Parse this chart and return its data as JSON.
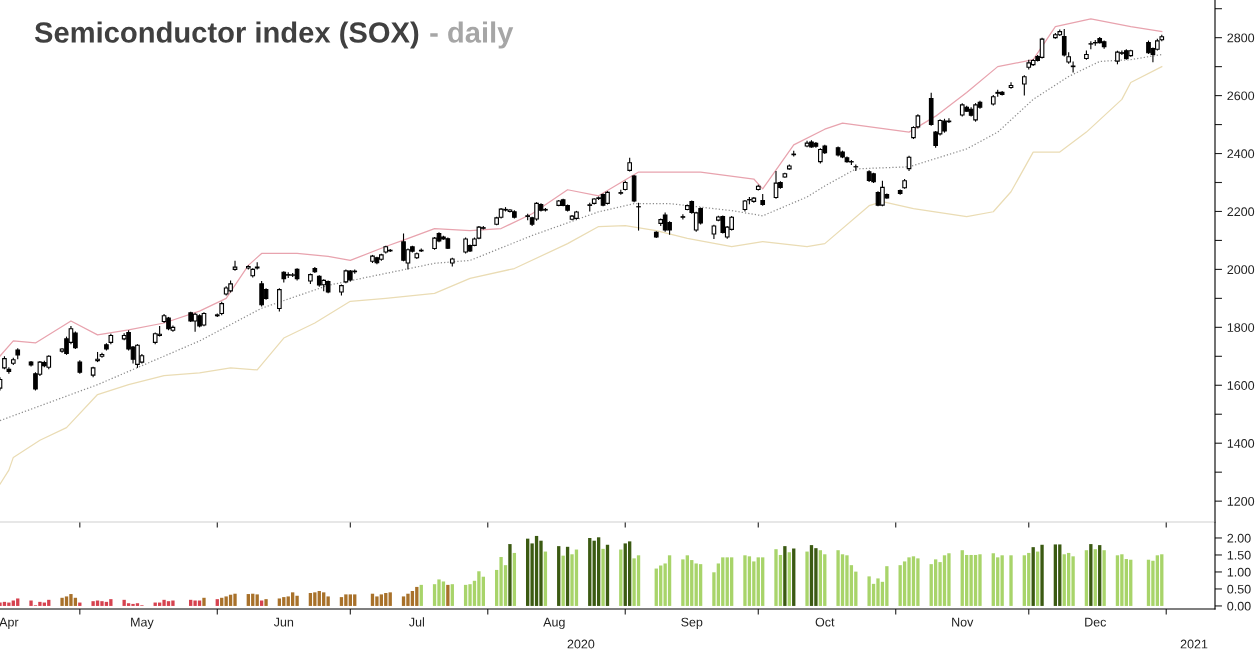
{
  "chart_data": [
    {
      "type": "candlestick",
      "title": "Semiconductor index (SOX)",
      "subtitle": "- daily",
      "tick_labels": "y",
      "x": [
        "2020-04-13",
        "2020-04-14",
        "2020-04-15",
        "2020-04-16",
        "2020-04-17",
        "2020-04-20",
        "2020-04-21",
        "2020-04-22",
        "2020-04-23",
        "2020-04-24",
        "2020-04-27",
        "2020-04-28",
        "2020-04-29",
        "2020-04-30",
        "2020-05-01",
        "2020-05-04",
        "2020-05-05",
        "2020-05-06",
        "2020-05-07",
        "2020-05-08",
        "2020-05-11",
        "2020-05-12",
        "2020-05-13",
        "2020-05-14",
        "2020-05-15",
        "2020-05-18",
        "2020-05-19",
        "2020-05-20",
        "2020-05-21",
        "2020-05-22",
        "2020-05-26",
        "2020-05-27",
        "2020-05-28",
        "2020-05-29",
        "2020-06-01",
        "2020-06-02",
        "2020-06-03",
        "2020-06-04",
        "2020-06-05",
        "2020-06-08",
        "2020-06-09",
        "2020-06-10",
        "2020-06-11",
        "2020-06-12",
        "2020-06-15",
        "2020-06-16",
        "2020-06-17",
        "2020-06-18",
        "2020-06-19",
        "2020-06-22",
        "2020-06-23",
        "2020-06-24",
        "2020-06-25",
        "2020-06-26",
        "2020-06-29",
        "2020-06-30",
        "2020-07-01",
        "2020-07-02",
        "2020-07-06",
        "2020-07-07",
        "2020-07-08",
        "2020-07-09",
        "2020-07-10",
        "2020-07-13",
        "2020-07-14",
        "2020-07-15",
        "2020-07-16",
        "2020-07-17",
        "2020-07-20",
        "2020-07-21",
        "2020-07-22",
        "2020-07-23",
        "2020-07-24",
        "2020-07-27",
        "2020-07-28",
        "2020-07-29",
        "2020-07-30",
        "2020-07-31",
        "2020-08-03",
        "2020-08-04",
        "2020-08-05",
        "2020-08-06",
        "2020-08-07",
        "2020-08-10",
        "2020-08-11",
        "2020-08-12",
        "2020-08-13",
        "2020-08-14",
        "2020-08-17",
        "2020-08-18",
        "2020-08-19",
        "2020-08-20",
        "2020-08-21",
        "2020-08-24",
        "2020-08-25",
        "2020-08-26",
        "2020-08-27",
        "2020-08-28",
        "2020-08-31",
        "2020-09-01",
        "2020-09-02",
        "2020-09-03",
        "2020-09-04",
        "2020-09-08",
        "2020-09-09",
        "2020-09-10",
        "2020-09-11",
        "2020-09-14",
        "2020-09-15",
        "2020-09-16",
        "2020-09-17",
        "2020-09-18",
        "2020-09-21",
        "2020-09-22",
        "2020-09-23",
        "2020-09-24",
        "2020-09-25",
        "2020-09-28",
        "2020-09-29",
        "2020-09-30",
        "2020-10-01",
        "2020-10-02",
        "2020-10-05",
        "2020-10-06",
        "2020-10-07",
        "2020-10-08",
        "2020-10-09",
        "2020-10-12",
        "2020-10-13",
        "2020-10-14",
        "2020-10-15",
        "2020-10-16",
        "2020-10-19",
        "2020-10-20",
        "2020-10-21",
        "2020-10-22",
        "2020-10-23",
        "2020-10-26",
        "2020-10-27",
        "2020-10-28",
        "2020-10-29",
        "2020-10-30",
        "2020-11-02",
        "2020-11-03",
        "2020-11-04",
        "2020-11-05",
        "2020-11-06",
        "2020-11-09",
        "2020-11-10",
        "2020-11-11",
        "2020-11-12",
        "2020-11-13",
        "2020-11-16",
        "2020-11-17",
        "2020-11-18",
        "2020-11-19",
        "2020-11-20",
        "2020-11-23",
        "2020-11-24",
        "2020-11-25",
        "2020-11-27",
        "2020-11-30",
        "2020-12-01",
        "2020-12-02",
        "2020-12-03",
        "2020-12-04",
        "2020-12-07",
        "2020-12-08",
        "2020-12-09",
        "2020-12-10",
        "2020-12-11",
        "2020-12-14",
        "2020-12-15",
        "2020-12-16",
        "2020-12-17",
        "2020-12-18",
        "2020-12-21",
        "2020-12-22",
        "2020-12-23",
        "2020-12-24",
        "2020-12-28",
        "2020-12-29",
        "2020-12-30",
        "2020-12-31"
      ],
      "ohlc": [
        [
          1590,
          1628,
          1582,
          1620
        ],
        [
          1660,
          1700,
          1655,
          1692
        ],
        [
          1655,
          1662,
          1640,
          1648
        ],
        [
          1676,
          1695,
          1670,
          1688
        ],
        [
          1722,
          1728,
          1690,
          1705
        ],
        [
          1680,
          1684,
          1665,
          1670
        ],
        [
          1640,
          1645,
          1582,
          1587
        ],
        [
          1638,
          1684,
          1632,
          1680
        ],
        [
          1678,
          1685,
          1662,
          1668
        ],
        [
          1662,
          1704,
          1655,
          1700
        ],
        [
          1718,
          1728,
          1712,
          1725
        ],
        [
          1760,
          1768,
          1705,
          1710
        ],
        [
          1748,
          1805,
          1742,
          1795
        ],
        [
          1780,
          1786,
          1725,
          1730
        ],
        [
          1680,
          1686,
          1640,
          1645
        ],
        [
          1635,
          1664,
          1628,
          1660
        ],
        [
          1685,
          1715,
          1680,
          1690
        ],
        [
          1700,
          1712,
          1695,
          1706
        ],
        [
          1740,
          1745,
          1720,
          1725
        ],
        [
          1748,
          1778,
          1742,
          1772
        ],
        [
          1760,
          1780,
          1755,
          1772
        ],
        [
          1782,
          1790,
          1720,
          1725
        ],
        [
          1732,
          1736,
          1675,
          1690
        ],
        [
          1672,
          1742,
          1660,
          1738
        ],
        [
          1680,
          1708,
          1675,
          1702
        ],
        [
          1748,
          1782,
          1742,
          1778
        ],
        [
          1772,
          1805,
          1768,
          1776
        ],
        [
          1820,
          1846,
          1815,
          1840
        ],
        [
          1832,
          1836,
          1790,
          1795
        ],
        [
          1790,
          1806,
          1785,
          1800
        ],
        [
          1850,
          1854,
          1818,
          1822
        ],
        [
          1822,
          1850,
          1785,
          1845
        ],
        [
          1840,
          1845,
          1800,
          1805
        ],
        [
          1808,
          1852,
          1804,
          1848
        ],
        [
          1840,
          1848,
          1836,
          1843
        ],
        [
          1848,
          1888,
          1842,
          1882
        ],
        [
          1915,
          1942,
          1910,
          1936
        ],
        [
          1926,
          1962,
          1920,
          1950
        ],
        [
          2000,
          2030,
          1995,
          2008
        ],
        [
          2005,
          2014,
          2000,
          2010
        ],
        [
          1978,
          2004,
          1972,
          2000
        ],
        [
          2005,
          2025,
          2000,
          2008
        ],
        [
          1950,
          1960,
          1872,
          1878
        ],
        [
          1930,
          1935,
          1895,
          1900
        ],
        [
          1865,
          1935,
          1855,
          1930
        ],
        [
          1990,
          1994,
          1955,
          1968
        ],
        [
          1980,
          1990,
          1970,
          1982
        ],
        [
          1980,
          1988,
          1974,
          1981
        ],
        [
          2000,
          2004,
          1962,
          1968
        ],
        [
          1960,
          1986,
          1950,
          1982
        ],
        [
          2003,
          2008,
          1988,
          1992
        ],
        [
          1976,
          1980,
          1940,
          1946
        ],
        [
          1947,
          1966,
          1925,
          1962
        ],
        [
          1958,
          1962,
          1918,
          1922
        ],
        [
          1922,
          1948,
          1910,
          1944
        ],
        [
          1957,
          2000,
          1952,
          1995
        ],
        [
          1994,
          1998,
          1958,
          1964
        ],
        [
          1992,
          2000,
          1985,
          1994
        ],
        [
          2028,
          2050,
          2022,
          2046
        ],
        [
          2040,
          2044,
          2018,
          2023
        ],
        [
          2035,
          2054,
          2030,
          2050
        ],
        [
          2060,
          2082,
          2055,
          2078
        ],
        [
          2064,
          2070,
          2060,
          2066
        ],
        [
          2095,
          2124,
          2028,
          2032
        ],
        [
          2022,
          2072,
          2000,
          2068
        ],
        [
          2078,
          2082,
          2058,
          2063
        ],
        [
          2040,
          2058,
          2036,
          2054
        ],
        [
          2064,
          2072,
          2060,
          2066
        ],
        [
          2072,
          2112,
          2068,
          2108
        ],
        [
          2124,
          2128,
          2094,
          2098
        ],
        [
          2112,
          2116,
          2102,
          2105
        ],
        [
          2106,
          2110,
          2070,
          2073
        ],
        [
          2022,
          2040,
          2010,
          2036
        ],
        [
          2060,
          2110,
          2055,
          2105
        ],
        [
          2082,
          2086,
          2060,
          2064
        ],
        [
          2083,
          2110,
          2080,
          2105
        ],
        [
          2108,
          2150,
          2104,
          2146
        ],
        [
          2142,
          2150,
          2138,
          2144
        ],
        [
          2156,
          2182,
          2152,
          2178
        ],
        [
          2180,
          2212,
          2176,
          2208
        ],
        [
          2205,
          2215,
          2200,
          2207
        ],
        [
          2200,
          2208,
          2196,
          2205
        ],
        [
          2199,
          2204,
          2176,
          2180
        ],
        [
          2183,
          2192,
          2170,
          2185
        ],
        [
          2178,
          2182,
          2150,
          2156
        ],
        [
          2174,
          2232,
          2168,
          2228
        ],
        [
          2224,
          2228,
          2200,
          2204
        ],
        [
          2205,
          2212,
          2200,
          2207
        ],
        [
          2221,
          2240,
          2218,
          2236
        ],
        [
          2240,
          2244,
          2218,
          2221
        ],
        [
          2220,
          2224,
          2200,
          2204
        ],
        [
          2173,
          2188,
          2170,
          2184
        ],
        [
          2176,
          2202,
          2172,
          2198
        ],
        [
          2221,
          2230,
          2200,
          2223
        ],
        [
          2228,
          2246,
          2224,
          2243
        ],
        [
          2245,
          2252,
          2240,
          2247
        ],
        [
          2258,
          2262,
          2218,
          2222
        ],
        [
          2228,
          2270,
          2224,
          2266
        ],
        [
          2263,
          2275,
          2258,
          2265
        ],
        [
          2276,
          2306,
          2272,
          2300
        ],
        [
          2342,
          2385,
          2338,
          2368
        ],
        [
          2322,
          2326,
          2232,
          2236
        ],
        [
          2216,
          2230,
          2134,
          2216
        ],
        [
          2128,
          2132,
          2108,
          2112
        ],
        [
          2159,
          2176,
          2150,
          2172
        ],
        [
          2188,
          2196,
          2130,
          2136
        ],
        [
          2162,
          2166,
          2120,
          2136
        ],
        [
          2180,
          2190,
          2172,
          2182
        ],
        [
          2207,
          2224,
          2204,
          2220
        ],
        [
          2234,
          2238,
          2192,
          2197
        ],
        [
          2136,
          2199,
          2130,
          2195
        ],
        [
          2210,
          2214,
          2155,
          2160
        ],
        [
          2122,
          2154,
          2105,
          2150
        ],
        [
          2170,
          2185,
          2166,
          2181
        ],
        [
          2182,
          2186,
          2124,
          2128
        ],
        [
          2112,
          2150,
          2106,
          2146
        ],
        [
          2138,
          2184,
          2134,
          2180
        ],
        [
          2207,
          2240,
          2200,
          2236
        ],
        [
          2240,
          2250,
          2225,
          2241
        ],
        [
          2235,
          2250,
          2230,
          2246
        ],
        [
          2276,
          2292,
          2272,
          2287
        ],
        [
          2238,
          2260,
          2220,
          2224
        ],
        [
          2248,
          2340,
          2244,
          2298
        ],
        [
          2300,
          2304,
          2278,
          2283
        ],
        [
          2319,
          2334,
          2316,
          2330
        ],
        [
          2347,
          2362,
          2344,
          2357
        ],
        [
          2396,
          2410,
          2390,
          2398
        ],
        [
          2426,
          2444,
          2422,
          2436
        ],
        [
          2440,
          2446,
          2420,
          2423
        ],
        [
          2435,
          2440,
          2420,
          2425
        ],
        [
          2372,
          2418,
          2366,
          2414
        ],
        [
          2426,
          2430,
          2398,
          2403
        ],
        [
          2420,
          2424,
          2390,
          2395
        ],
        [
          2405,
          2410,
          2384,
          2388
        ],
        [
          2385,
          2390,
          2368,
          2372
        ],
        [
          2372,
          2378,
          2360,
          2371
        ],
        [
          2354,
          2362,
          2340,
          2354
        ],
        [
          2337,
          2342,
          2302,
          2307
        ],
        [
          2330,
          2334,
          2298,
          2303
        ],
        [
          2265,
          2270,
          2218,
          2222
        ],
        [
          2222,
          2306,
          2218,
          2283
        ],
        [
          2258,
          2262,
          2244,
          2247
        ],
        [
          2272,
          2276,
          2258,
          2262
        ],
        [
          2282,
          2312,
          2278,
          2306
        ],
        [
          2348,
          2392,
          2340,
          2387
        ],
        [
          2455,
          2494,
          2450,
          2490
        ],
        [
          2492,
          2536,
          2486,
          2530
        ],
        [
          2590,
          2610,
          2496,
          2500
        ],
        [
          2474,
          2478,
          2420,
          2428
        ],
        [
          2468,
          2518,
          2462,
          2514
        ],
        [
          2512,
          2520,
          2472,
          2478
        ],
        [
          2510,
          2522,
          2505,
          2512
        ],
        [
          2533,
          2574,
          2528,
          2568
        ],
        [
          2560,
          2565,
          2544,
          2546
        ],
        [
          2553,
          2560,
          2528,
          2532
        ],
        [
          2516,
          2574,
          2510,
          2568
        ],
        [
          2577,
          2582,
          2555,
          2560
        ],
        [
          2571,
          2602,
          2566,
          2596
        ],
        [
          2608,
          2620,
          2596,
          2611
        ],
        [
          2611,
          2616,
          2600,
          2604
        ],
        [
          2628,
          2646,
          2624,
          2635
        ],
        [
          2640,
          2670,
          2600,
          2665
        ],
        [
          2698,
          2724,
          2690,
          2713
        ],
        [
          2707,
          2726,
          2702,
          2721
        ],
        [
          2735,
          2740,
          2718,
          2721
        ],
        [
          2732,
          2800,
          2728,
          2795
        ],
        [
          2800,
          2816,
          2796,
          2810
        ],
        [
          2810,
          2828,
          2806,
          2821
        ],
        [
          2804,
          2830,
          2735,
          2740
        ],
        [
          2716,
          2750,
          2710,
          2734
        ],
        [
          2702,
          2718,
          2680,
          2700
        ],
        [
          2728,
          2756,
          2724,
          2742
        ],
        [
          2778,
          2788,
          2760,
          2779
        ],
        [
          2782,
          2792,
          2772,
          2783
        ],
        [
          2797,
          2802,
          2780,
          2783
        ],
        [
          2786,
          2790,
          2762,
          2769
        ],
        [
          2719,
          2755,
          2708,
          2750
        ],
        [
          2746,
          2756,
          2740,
          2748
        ],
        [
          2755,
          2760,
          2724,
          2728
        ],
        [
          2738,
          2758,
          2734,
          2755
        ],
        [
          2783,
          2790,
          2744,
          2748
        ],
        [
          2762,
          2766,
          2715,
          2742
        ],
        [
          2760,
          2796,
          2756,
          2789
        ],
        [
          2793,
          2810,
          2788,
          2803
        ]
      ],
      "series": [
        {
          "type": "line",
          "color": "#e8a3ae",
          "line_style": "solid",
          "x": [
            "2020-04-13",
            "2020-04-16",
            "2020-04-21",
            "2020-04-29",
            "2020-05-05",
            "2020-05-12",
            "2020-05-20",
            "2020-05-28",
            "2020-06-03",
            "2020-06-08",
            "2020-06-11",
            "2020-06-19",
            "2020-06-26",
            "2020-07-01",
            "2020-07-09",
            "2020-07-13",
            "2020-07-20",
            "2020-07-28",
            "2020-08-04",
            "2020-08-11",
            "2020-08-19",
            "2020-08-26",
            "2020-09-04",
            "2020-09-18",
            "2020-09-30",
            "2020-10-02",
            "2020-10-09",
            "2020-10-16",
            "2020-10-20",
            "2020-11-04",
            "2020-11-10",
            "2020-11-17",
            "2020-11-24",
            "2020-12-02",
            "2020-12-07",
            "2020-12-15",
            "2020-12-24",
            "2020-12-31"
          ],
          "values": [
            1701,
            1753,
            1746,
            1822,
            1774,
            1791,
            1815,
            1856,
            1900,
            2014,
            2055,
            2055,
            2045,
            2031,
            2079,
            2101,
            2141,
            2134,
            2141,
            2192,
            2275,
            2254,
            2336,
            2336,
            2312,
            2278,
            2430,
            2484,
            2505,
            2474,
            2529,
            2611,
            2700,
            2724,
            2838,
            2865,
            2838,
            2821
          ]
        },
        {
          "type": "line",
          "color": "#8c8c8c",
          "line_style": "dotted",
          "x": [
            "2020-04-13",
            "2020-05-05",
            "2020-05-28",
            "2020-06-11",
            "2020-06-26",
            "2020-07-20",
            "2020-07-28",
            "2020-08-11",
            "2020-08-26",
            "2020-09-03",
            "2020-09-11",
            "2020-09-25",
            "2020-10-02",
            "2020-10-12",
            "2020-10-16",
            "2020-10-23",
            "2020-11-04",
            "2020-11-17",
            "2020-11-24",
            "2020-12-02",
            "2020-12-10",
            "2020-12-17",
            "2020-12-24",
            "2020-12-31"
          ],
          "values": [
            1478,
            1602,
            1753,
            1866,
            1945,
            2021,
            2031,
            2117,
            2199,
            2227,
            2227,
            2203,
            2185,
            2250,
            2288,
            2347,
            2354,
            2416,
            2474,
            2587,
            2666,
            2718,
            2724,
            2742
          ]
        },
        {
          "type": "line",
          "color": "#eadcb4",
          "line_style": "solid",
          "x": [
            "2020-04-13",
            "2020-04-15",
            "2020-04-16",
            "2020-04-22",
            "2020-04-28",
            "2020-05-05",
            "2020-05-12",
            "2020-05-20",
            "2020-05-28",
            "2020-06-04",
            "2020-06-10",
            "2020-06-16",
            "2020-06-23",
            "2020-07-01",
            "2020-07-09",
            "2020-07-20",
            "2020-07-28",
            "2020-08-07",
            "2020-08-19",
            "2020-08-26",
            "2020-09-01",
            "2020-09-08",
            "2020-09-15",
            "2020-09-25",
            "2020-10-02",
            "2020-10-12",
            "2020-10-16",
            "2020-10-26",
            "2020-10-29",
            "2020-11-05",
            "2020-11-17",
            "2020-11-23",
            "2020-11-27",
            "2020-12-02",
            "2020-12-08",
            "2020-12-14",
            "2020-12-22",
            "2020-12-24",
            "2020-12-31"
          ],
          "values": [
            1259,
            1307,
            1351,
            1410,
            1454,
            1568,
            1602,
            1633,
            1643,
            1660,
            1653,
            1763,
            1815,
            1890,
            1900,
            1917,
            1969,
            2003,
            2089,
            2148,
            2151,
            2134,
            2107,
            2079,
            2096,
            2079,
            2089,
            2220,
            2234,
            2210,
            2182,
            2199,
            2268,
            2405,
            2405,
            2474,
            2587,
            2645,
            2700
          ]
        }
      ],
      "xlim": [
        "2020-04-13",
        "2021-01-12"
      ],
      "xticks": [
        {
          "value": "2020-05-01",
          "label": null
        },
        {
          "value": "2020-06-01",
          "label": null
        },
        {
          "value": "2020-07-01",
          "label": null
        },
        {
          "value": "2020-08-01",
          "label": null
        },
        {
          "value": "2020-09-01",
          "label": null
        },
        {
          "value": "2020-10-01",
          "label": null
        },
        {
          "value": "2020-11-01",
          "label": null
        },
        {
          "value": "2020-12-01",
          "label": null
        },
        {
          "value": "2021-01-01",
          "label": null
        }
      ],
      "ylim": [
        1128,
        2930
      ],
      "yticks": [
        1200,
        {
          "value": 1300,
          "label": null
        },
        1400,
        {
          "value": 1500,
          "label": null
        },
        1600,
        {
          "value": 1700,
          "label": null
        },
        1800,
        {
          "value": 1900,
          "label": null
        },
        2000,
        {
          "value": 2100,
          "label": null
        },
        2200,
        {
          "value": 2300,
          "label": null
        },
        2400,
        {
          "value": 2500,
          "label": null
        },
        2600,
        {
          "value": 2700,
          "label": null
        },
        2800,
        {
          "value": 2900,
          "label": null
        }
      ]
    },
    {
      "type": "bar",
      "x": [
        "2020-04-13",
        "2020-04-14",
        "2020-04-15",
        "2020-04-16",
        "2020-04-17",
        "2020-04-20",
        "2020-04-21",
        "2020-04-22",
        "2020-04-23",
        "2020-04-24",
        "2020-04-27",
        "2020-04-28",
        "2020-04-29",
        "2020-04-30",
        "2020-05-01",
        "2020-05-04",
        "2020-05-05",
        "2020-05-06",
        "2020-05-07",
        "2020-05-08",
        "2020-05-11",
        "2020-05-12",
        "2020-05-13",
        "2020-05-14",
        "2020-05-15",
        "2020-05-18",
        "2020-05-19",
        "2020-05-20",
        "2020-05-21",
        "2020-05-22",
        "2020-05-26",
        "2020-05-27",
        "2020-05-28",
        "2020-05-29",
        "2020-06-01",
        "2020-06-02",
        "2020-06-03",
        "2020-06-04",
        "2020-06-05",
        "2020-06-08",
        "2020-06-09",
        "2020-06-10",
        "2020-06-11",
        "2020-06-12",
        "2020-06-15",
        "2020-06-16",
        "2020-06-17",
        "2020-06-18",
        "2020-06-19",
        "2020-06-22",
        "2020-06-23",
        "2020-06-24",
        "2020-06-25",
        "2020-06-26",
        "2020-06-29",
        "2020-06-30",
        "2020-07-01",
        "2020-07-02",
        "2020-07-06",
        "2020-07-07",
        "2020-07-08",
        "2020-07-09",
        "2020-07-10",
        "2020-07-13",
        "2020-07-14",
        "2020-07-15",
        "2020-07-16",
        "2020-07-17",
        "2020-07-20",
        "2020-07-21",
        "2020-07-22",
        "2020-07-23",
        "2020-07-24",
        "2020-07-27",
        "2020-07-28",
        "2020-07-29",
        "2020-07-30",
        "2020-07-31",
        "2020-08-03",
        "2020-08-04",
        "2020-08-05",
        "2020-08-06",
        "2020-08-07",
        "2020-08-10",
        "2020-08-11",
        "2020-08-12",
        "2020-08-13",
        "2020-08-14",
        "2020-08-17",
        "2020-08-18",
        "2020-08-19",
        "2020-08-20",
        "2020-08-21",
        "2020-08-24",
        "2020-08-25",
        "2020-08-26",
        "2020-08-27",
        "2020-08-28",
        "2020-08-31",
        "2020-09-01",
        "2020-09-02",
        "2020-09-03",
        "2020-09-04",
        "2020-09-08",
        "2020-09-09",
        "2020-09-10",
        "2020-09-11",
        "2020-09-14",
        "2020-09-15",
        "2020-09-16",
        "2020-09-17",
        "2020-09-18",
        "2020-09-21",
        "2020-09-22",
        "2020-09-23",
        "2020-09-24",
        "2020-09-25",
        "2020-09-28",
        "2020-09-29",
        "2020-09-30",
        "2020-10-01",
        "2020-10-02",
        "2020-10-05",
        "2020-10-06",
        "2020-10-07",
        "2020-10-08",
        "2020-10-09",
        "2020-10-12",
        "2020-10-13",
        "2020-10-14",
        "2020-10-15",
        "2020-10-16",
        "2020-10-19",
        "2020-10-20",
        "2020-10-21",
        "2020-10-22",
        "2020-10-23",
        "2020-10-26",
        "2020-10-27",
        "2020-10-28",
        "2020-10-29",
        "2020-10-30",
        "2020-11-02",
        "2020-11-03",
        "2020-11-04",
        "2020-11-05",
        "2020-11-06",
        "2020-11-09",
        "2020-11-10",
        "2020-11-11",
        "2020-11-12",
        "2020-11-13",
        "2020-11-16",
        "2020-11-17",
        "2020-11-18",
        "2020-11-19",
        "2020-11-20",
        "2020-11-23",
        "2020-11-24",
        "2020-11-25",
        "2020-11-27",
        "2020-11-30",
        "2020-12-01",
        "2020-12-02",
        "2020-12-03",
        "2020-12-04",
        "2020-12-07",
        "2020-12-08",
        "2020-12-09",
        "2020-12-10",
        "2020-12-11",
        "2020-12-14",
        "2020-12-15",
        "2020-12-16",
        "2020-12-17",
        "2020-12-18",
        "2020-12-21",
        "2020-12-22",
        "2020-12-23",
        "2020-12-24",
        "2020-12-28",
        "2020-12-29",
        "2020-12-30",
        "2020-12-31"
      ],
      "values": [
        0.1,
        0.12,
        0.1,
        0.16,
        0.22,
        0.16,
        0.02,
        0.12,
        0.1,
        0.18,
        0.24,
        0.28,
        0.35,
        0.24,
        0.1,
        0.14,
        0.16,
        0.14,
        0.12,
        0.2,
        0.18,
        0.08,
        0.06,
        0.08,
        0.02,
        0.1,
        0.1,
        0.18,
        0.14,
        0.16,
        0.18,
        0.16,
        0.16,
        0.24,
        0.2,
        0.24,
        0.28,
        0.33,
        0.36,
        0.35,
        0.36,
        0.34,
        0.16,
        0.2,
        0.22,
        0.26,
        0.28,
        0.4,
        0.3,
        0.38,
        0.4,
        0.44,
        0.4,
        0.28,
        0.26,
        0.34,
        0.34,
        0.34,
        0.36,
        0.28,
        0.34,
        0.38,
        0.4,
        0.28,
        0.36,
        0.44,
        0.56,
        0.62,
        0.64,
        0.78,
        0.72,
        0.62,
        0.64,
        0.62,
        0.64,
        0.74,
        1.02,
        0.86,
        1.06,
        1.44,
        1.2,
        1.82,
        1.56,
        1.98,
        1.84,
        2.06,
        1.92,
        1.6,
        1.76,
        1.48,
        1.74,
        1.52,
        1.66,
        2.0,
        1.92,
        2.02,
        1.68,
        1.8,
        1.66,
        1.84,
        1.9,
        1.4,
        1.49,
        1.1,
        1.19,
        1.25,
        1.49,
        1.37,
        1.49,
        1.35,
        1.25,
        1.23,
        0.99,
        1.25,
        1.43,
        1.43,
        1.43,
        1.49,
        1.46,
        1.31,
        1.43,
        1.43,
        1.67,
        1.5,
        1.76,
        1.58,
        1.69,
        1.6,
        1.79,
        1.7,
        1.64,
        1.52,
        1.64,
        1.52,
        1.49,
        1.2,
        1.01,
        0.87,
        0.65,
        0.81,
        0.71,
        1.17,
        1.2,
        1.31,
        1.43,
        1.46,
        1.4,
        1.23,
        1.37,
        1.29,
        1.49,
        1.55,
        1.64,
        1.5,
        1.5,
        1.5,
        1.52,
        1.55,
        1.43,
        1.49,
        1.49,
        1.49,
        1.56,
        1.73,
        1.6,
        1.8,
        1.81,
        1.81,
        1.52,
        1.56,
        1.46,
        1.64,
        1.82,
        1.67,
        1.79,
        1.64,
        1.49,
        1.52,
        1.38,
        1.36,
        1.36,
        1.33,
        1.49,
        1.52
      ],
      "colors": [
        "#d6424f",
        "#d6424f",
        "#d6424f",
        "#d6424f",
        "#d6424f",
        "#d6424f",
        "#d6424f",
        "#d6424f",
        "#d6424f",
        "#d6424f",
        "#a8712a",
        "#a8712a",
        "#a8712a",
        "#a8712a",
        "#d6424f",
        "#d6424f",
        "#d6424f",
        "#d6424f",
        "#d6424f",
        "#d6424f",
        "#d6424f",
        "#d6424f",
        "#d6424f",
        "#d6424f",
        "#d6424f",
        "#d6424f",
        "#d6424f",
        "#d6424f",
        "#d6424f",
        "#d6424f",
        "#d6424f",
        "#d6424f",
        "#d6424f",
        "#a8712a",
        "#d6424f",
        "#a8712a",
        "#a8712a",
        "#a8712a",
        "#a8712a",
        "#a8712a",
        "#a8712a",
        "#a8712a",
        "#d6424f",
        "#a8712a",
        "#a8712a",
        "#a8712a",
        "#a8712a",
        "#a8712a",
        "#a8712a",
        "#a8712a",
        "#a8712a",
        "#a8712a",
        "#a8712a",
        "#a8712a",
        "#a8712a",
        "#a8712a",
        "#a8712a",
        "#a8712a",
        "#a8712a",
        "#a8712a",
        "#a8712a",
        "#a8712a",
        "#a8712a",
        "#a8712a",
        "#a8712a",
        "#a8712a",
        "#a8712a",
        "#a8d46a",
        "#a8d46a",
        "#a8d46a",
        "#a8d46a",
        "#a8712a",
        "#a8d46a",
        "#a8d46a",
        "#a8d46a",
        "#a8d46a",
        "#a8d46a",
        "#a8d46a",
        "#a8d46a",
        "#a8d46a",
        "#a8d46a",
        "#3b5a12",
        "#a8d46a",
        "#3b5a12",
        "#3b5a12",
        "#3b5a12",
        "#3b5a12",
        "#a8d46a",
        "#3b5a12",
        "#a8d46a",
        "#3b5a12",
        "#a8d46a",
        "#a8d46a",
        "#3b5a12",
        "#3b5a12",
        "#3b5a12",
        "#a8d46a",
        "#3b5a12",
        "#a8d46a",
        "#3b5a12",
        "#3b5a12",
        "#a8d46a",
        "#a8d46a",
        "#a8d46a",
        "#a8d46a",
        "#a8d46a",
        "#a8d46a",
        "#a8d46a",
        "#a8d46a",
        "#a8d46a",
        "#a8d46a",
        "#a8d46a",
        "#a8d46a",
        "#a8d46a",
        "#a8d46a",
        "#a8d46a",
        "#a8d46a",
        "#a8d46a",
        "#a8d46a",
        "#a8d46a",
        "#a8d46a",
        "#a8d46a",
        "#a8d46a",
        "#a8d46a",
        "#3b5a12",
        "#a8d46a",
        "#3b5a12",
        "#a8d46a",
        "#3b5a12",
        "#3b5a12",
        "#a8d46a",
        "#a8d46a",
        "#a8d46a",
        "#a8d46a",
        "#a8d46a",
        "#a8d46a",
        "#a8d46a",
        "#a8d46a",
        "#a8d46a",
        "#a8d46a",
        "#a8d46a",
        "#a8d46a",
        "#a8d46a",
        "#a8d46a",
        "#a8d46a",
        "#a8d46a",
        "#a8d46a",
        "#a8d46a",
        "#a8d46a",
        "#a8d46a",
        "#a8d46a",
        "#a8d46a",
        "#a8d46a",
        "#a8d46a",
        "#a8d46a",
        "#a8d46a",
        "#a8d46a",
        "#a8d46a",
        "#a8d46a",
        "#a8d46a",
        "#a8d46a",
        "#a8d46a",
        "#a8d46a",
        "#3b5a12",
        "#a8d46a",
        "#3b5a12",
        "#3b5a12",
        "#3b5a12",
        "#a8d46a",
        "#a8d46a",
        "#a8d46a",
        "#a8d46a",
        "#3b5a12",
        "#a8d46a",
        "#3b5a12",
        "#a8d46a",
        "#a8d46a",
        "#a8d46a",
        "#a8d46a",
        "#a8d46a",
        "#a8d46a",
        "#a8d46a",
        "#a8d46a",
        "#a8d46a"
      ],
      "xlim": [
        "2020-04-13",
        "2021-01-12"
      ],
      "xticks": [
        {
          "value": "2020-04-15",
          "label": "Apr"
        },
        {
          "value": "2020-05-01",
          "label": null
        },
        {
          "value": "2020-05-15",
          "label": "May"
        },
        {
          "value": "2020-06-01",
          "label": null
        },
        {
          "value": "2020-06-16",
          "label": "Jun"
        },
        {
          "value": "2020-07-01",
          "label": null
        },
        {
          "value": "2020-07-16",
          "label": "Jul"
        },
        {
          "value": "2020-08-01",
          "label": null
        },
        {
          "value": "2020-08-16",
          "label": "Aug"
        },
        {
          "value": "2020-09-01",
          "label": null
        },
        {
          "value": "2020-09-16",
          "label": "Sep"
        },
        {
          "value": "2020-10-01",
          "label": null
        },
        {
          "value": "2020-10-16",
          "label": "Oct"
        },
        {
          "value": "2020-11-01",
          "label": null
        },
        {
          "value": "2020-11-16",
          "label": "Nov"
        },
        {
          "value": "2020-12-01",
          "label": null
        },
        {
          "value": "2020-12-16",
          "label": "Dec"
        },
        {
          "value": "2021-01-01",
          "label": null
        }
      ],
      "ylim": [
        -0.09,
        2.47
      ],
      "yticks": [
        {
          "value": 0,
          "label": "0.00"
        },
        {
          "value": 0.5,
          "label": "0.50"
        },
        {
          "value": 1,
          "label": "1.00"
        },
        {
          "value": 1.5,
          "label": "1.50"
        },
        {
          "value": 2,
          "label": "2.00"
        }
      ],
      "annotations": [
        "2020",
        "2021"
      ]
    }
  ]
}
